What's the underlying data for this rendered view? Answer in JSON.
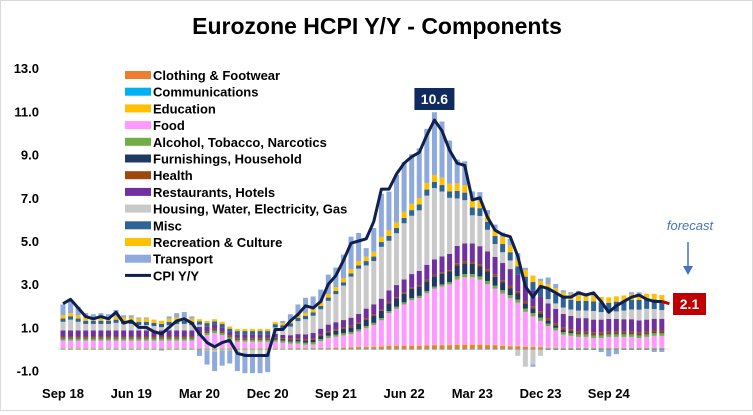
{
  "chart_data": {
    "type": "bar",
    "stacked": true,
    "title": "Eurozone HCPI Y/Y - Components",
    "xlabel": "",
    "ylabel": "",
    "ylim": [
      -1.0,
      13.0
    ],
    "yticks": [
      "-1.0",
      "1.0",
      "3.0",
      "5.0",
      "7.0",
      "9.0",
      "11.0",
      "13.0"
    ],
    "ytick_values": [
      -1,
      1,
      3,
      5,
      7,
      9,
      11,
      13
    ],
    "xtick_labels": [
      "Sep 18",
      "Jun 19",
      "Mar 20",
      "Dec 20",
      "Sep 21",
      "Jun 22",
      "Mar 23",
      "Dec 23",
      "Sep 24"
    ],
    "xtick_every_months": 9,
    "grid": false,
    "legend_placement": "top-left",
    "series": [
      {
        "name": "Clothing & Footwear",
        "color": "#ED7D31",
        "values": [
          0.03,
          0.03,
          0.03,
          0.03,
          0.03,
          0.03,
          0.03,
          0.03,
          0.03,
          0.03,
          0.03,
          0.03,
          0.03,
          0.03,
          0.03,
          0.03,
          0.03,
          0.03,
          0.03,
          0.03,
          0.03,
          0.03,
          0.03,
          0.03,
          0.03,
          0.03,
          0.03,
          0.03,
          0.03,
          0.03,
          0.04,
          0.04,
          0.04,
          0.05,
          0.05,
          0.05,
          0.06,
          0.07,
          0.08,
          0.1,
          0.1,
          0.1,
          0.12,
          0.15,
          0.15,
          0.15,
          0.15,
          0.15,
          0.17,
          0.18,
          0.18,
          0.18,
          0.2,
          0.2,
          0.2,
          0.19,
          0.18,
          0.17,
          0.15,
          0.13,
          0.12,
          0.1,
          0.09,
          0.08,
          0.05,
          0.05,
          0.05,
          0.05,
          0.05,
          0.05,
          0.05,
          0.05,
          0.05,
          0.05,
          0.05,
          0.05,
          0.05,
          0.05,
          0.05,
          0.05
        ]
      },
      {
        "name": "Communications",
        "color": "#00B0F0",
        "values": [
          -0.02,
          -0.02,
          -0.02,
          -0.02,
          -0.02,
          -0.02,
          -0.02,
          -0.02,
          -0.02,
          -0.02,
          -0.02,
          -0.02,
          -0.02,
          -0.02,
          -0.02,
          -0.02,
          -0.02,
          -0.02,
          -0.02,
          -0.02,
          -0.02,
          -0.02,
          -0.02,
          -0.02,
          -0.02,
          -0.02,
          -0.02,
          -0.02,
          -0.02,
          -0.02,
          -0.02,
          -0.02,
          -0.02,
          -0.02,
          -0.02,
          -0.02,
          -0.02,
          -0.02,
          -0.02,
          -0.02,
          -0.02,
          -0.02,
          -0.02,
          -0.02,
          -0.02,
          -0.02,
          -0.02,
          -0.02,
          -0.02,
          -0.02,
          -0.02,
          -0.02,
          -0.02,
          -0.02,
          -0.02,
          -0.02,
          -0.02,
          -0.02,
          -0.02,
          -0.02,
          -0.02,
          -0.02,
          -0.02,
          -0.02,
          -0.04,
          -0.04,
          -0.04,
          -0.04,
          -0.04,
          -0.04,
          -0.04,
          -0.04,
          -0.04,
          -0.04,
          -0.04,
          -0.04,
          -0.04,
          -0.04,
          -0.04,
          -0.04
        ]
      },
      {
        "name": "Education",
        "color": "#FFC000",
        "values": [
          0.01,
          0.01,
          0.01,
          0.01,
          0.01,
          0.01,
          0.01,
          0.01,
          0.01,
          0.01,
          0.01,
          0.01,
          0.01,
          0.01,
          0.01,
          0.01,
          0.01,
          0.01,
          0.01,
          0.01,
          0.01,
          0.01,
          0.01,
          0.01,
          0.01,
          0.01,
          0.01,
          0.01,
          0.01,
          0.01,
          0.01,
          0.01,
          0.01,
          0.01,
          0.01,
          0.01,
          0.01,
          0.01,
          0.01,
          0.01,
          0.01,
          0.01,
          0.01,
          0.01,
          0.01,
          0.01,
          0.01,
          0.01,
          0.01,
          0.01,
          0.01,
          0.01,
          0.02,
          0.02,
          0.02,
          0.02,
          0.02,
          0.02,
          0.02,
          0.02,
          0.02,
          0.02,
          0.02,
          0.02,
          0.01,
          0.01,
          0.01,
          0.01,
          0.01,
          0.01,
          0.01,
          0.01,
          0.01,
          0.01,
          0.01,
          0.01,
          0.01,
          0.01,
          0.01,
          0.01
        ]
      },
      {
        "name": "Food",
        "color": "#FF99FF",
        "values": [
          0.35,
          0.35,
          0.35,
          0.35,
          0.35,
          0.35,
          0.35,
          0.35,
          0.35,
          0.35,
          0.35,
          0.35,
          0.35,
          0.35,
          0.35,
          0.35,
          0.35,
          0.35,
          0.55,
          0.6,
          0.7,
          0.6,
          0.4,
          0.3,
          0.3,
          0.3,
          0.3,
          0.3,
          0.3,
          0.25,
          0.2,
          0.2,
          0.15,
          0.15,
          0.3,
          0.45,
          0.5,
          0.55,
          0.6,
          0.7,
          0.85,
          1.0,
          1.2,
          1.5,
          1.7,
          1.9,
          2.1,
          2.2,
          2.4,
          2.6,
          2.7,
          2.8,
          3.0,
          3.1,
          3.1,
          3.0,
          2.8,
          2.6,
          2.4,
          2.2,
          2.0,
          1.6,
          1.4,
          1.2,
          1.0,
          0.8,
          0.6,
          0.55,
          0.5,
          0.5,
          0.45,
          0.45,
          0.5,
          0.5,
          0.5,
          0.5,
          0.45,
          0.5,
          0.55,
          0.55
        ]
      },
      {
        "name": "Alcohol, Tobacco, Narcotics",
        "color": "#70AD47",
        "values": [
          0.1,
          0.1,
          0.1,
          0.1,
          0.1,
          0.1,
          0.1,
          0.1,
          0.1,
          0.1,
          0.1,
          0.1,
          0.1,
          0.1,
          0.1,
          0.1,
          0.1,
          0.1,
          0.1,
          0.1,
          0.1,
          0.1,
          0.1,
          0.1,
          0.1,
          0.1,
          0.1,
          0.1,
          0.1,
          0.1,
          0.1,
          0.1,
          0.1,
          0.1,
          0.1,
          0.1,
          0.1,
          0.1,
          0.1,
          0.1,
          0.1,
          0.1,
          0.1,
          0.1,
          0.1,
          0.1,
          0.1,
          0.1,
          0.1,
          0.1,
          0.1,
          0.1,
          0.15,
          0.15,
          0.15,
          0.15,
          0.15,
          0.15,
          0.15,
          0.15,
          0.15,
          0.15,
          0.15,
          0.15,
          0.12,
          0.12,
          0.12,
          0.12,
          0.12,
          0.12,
          0.12,
          0.12,
          0.12,
          0.12,
          0.12,
          0.12,
          0.12,
          0.12,
          0.12,
          0.12
        ]
      },
      {
        "name": "Furnishings, Household",
        "color": "#203864",
        "values": [
          0.03,
          0.03,
          0.03,
          0.03,
          0.03,
          0.03,
          0.03,
          0.03,
          0.03,
          0.03,
          0.03,
          0.03,
          0.03,
          0.03,
          0.03,
          0.03,
          0.03,
          0.03,
          0.03,
          0.03,
          0.03,
          0.03,
          0.03,
          0.03,
          0.03,
          0.03,
          0.03,
          0.03,
          0.05,
          0.05,
          0.06,
          0.08,
          0.1,
          0.12,
          0.14,
          0.16,
          0.18,
          0.2,
          0.22,
          0.25,
          0.3,
          0.32,
          0.34,
          0.36,
          0.38,
          0.4,
          0.42,
          0.44,
          0.46,
          0.48,
          0.5,
          0.5,
          0.5,
          0.5,
          0.48,
          0.46,
          0.44,
          0.4,
          0.36,
          0.32,
          0.28,
          0.25,
          0.22,
          0.2,
          0.15,
          0.12,
          0.1,
          0.08,
          0.05,
          0.05,
          0.05,
          0.05,
          0.05,
          0.05,
          0.05,
          0.05,
          0.05,
          0.05,
          0.05,
          0.05
        ]
      },
      {
        "name": "Health",
        "color": "#9E480E",
        "values": [
          0.06,
          0.06,
          0.06,
          0.06,
          0.06,
          0.06,
          0.06,
          0.06,
          0.06,
          0.06,
          0.06,
          0.06,
          0.06,
          0.06,
          0.06,
          0.06,
          0.06,
          0.06,
          0.06,
          0.06,
          0.06,
          0.06,
          0.06,
          0.06,
          0.06,
          0.06,
          0.06,
          0.06,
          0.06,
          0.06,
          0.06,
          0.06,
          0.06,
          0.06,
          0.06,
          0.06,
          0.06,
          0.06,
          0.06,
          0.06,
          0.06,
          0.06,
          0.06,
          0.06,
          0.06,
          0.06,
          0.06,
          0.06,
          0.06,
          0.06,
          0.06,
          0.06,
          0.1,
          0.1,
          0.1,
          0.1,
          0.1,
          0.1,
          0.1,
          0.1,
          0.1,
          0.1,
          0.1,
          0.1,
          0.1,
          0.1,
          0.1,
          0.1,
          0.1,
          0.1,
          0.1,
          0.1,
          0.1,
          0.1,
          0.1,
          0.1,
          0.1,
          0.1,
          0.1,
          0.1
        ]
      },
      {
        "name": "Restaurants, Hotels",
        "color": "#7030A0",
        "values": [
          0.28,
          0.28,
          0.28,
          0.28,
          0.28,
          0.28,
          0.28,
          0.28,
          0.28,
          0.28,
          0.28,
          0.28,
          0.28,
          0.28,
          0.28,
          0.28,
          0.28,
          0.28,
          0.25,
          0.22,
          0.2,
          0.18,
          0.16,
          0.15,
          0.15,
          0.15,
          0.15,
          0.15,
          0.15,
          0.15,
          0.17,
          0.2,
          0.22,
          0.25,
          0.28,
          0.3,
          0.33,
          0.35,
          0.38,
          0.4,
          0.45,
          0.48,
          0.5,
          0.53,
          0.56,
          0.6,
          0.63,
          0.66,
          0.7,
          0.72,
          0.74,
          0.75,
          0.8,
          0.82,
          0.84,
          0.84,
          0.83,
          0.82,
          0.8,
          0.78,
          0.76,
          0.74,
          0.72,
          0.7,
          0.68,
          0.66,
          0.64,
          0.62,
          0.6,
          0.6,
          0.58,
          0.58,
          0.56,
          0.56,
          0.55,
          0.55,
          0.54,
          0.53,
          0.52,
          0.52
        ]
      },
      {
        "name": "Housing, Water, Electricity, Gas",
        "color": "#C9C9C9",
        "values": [
          0.4,
          0.5,
          0.4,
          0.3,
          0.3,
          0.3,
          0.3,
          0.35,
          0.3,
          0.3,
          0.25,
          0.25,
          0.2,
          0.15,
          0.25,
          0.3,
          0.3,
          0.25,
          0.1,
          -0.05,
          -0.1,
          -0.05,
          -0.05,
          -0.1,
          -0.15,
          -0.2,
          -0.2,
          -0.15,
          0.3,
          0.3,
          0.4,
          0.6,
          0.7,
          0.8,
          0.9,
          1.1,
          1.3,
          1.6,
          1.9,
          2.1,
          2.0,
          2.0,
          2.4,
          2.3,
          2.4,
          2.6,
          2.7,
          2.8,
          3.2,
          3.3,
          3.0,
          2.6,
          2.2,
          2.0,
          1.3,
          1.4,
          1.0,
          0.6,
          0.5,
          0.4,
          -0.3,
          -0.8,
          -0.7,
          -0.3,
          0.2,
          0.25,
          0.3,
          0.3,
          0.35,
          0.35,
          0.4,
          0.35,
          0.3,
          0.35,
          0.4,
          0.45,
          0.5,
          0.5,
          0.45,
          0.4
        ]
      },
      {
        "name": "Misc",
        "color": "#2E6396",
        "values": [
          0.15,
          0.15,
          0.15,
          0.15,
          0.15,
          0.15,
          0.15,
          0.15,
          0.15,
          0.15,
          0.15,
          0.15,
          0.15,
          0.15,
          0.15,
          0.15,
          0.15,
          0.15,
          0.15,
          0.15,
          0.15,
          0.15,
          0.15,
          0.15,
          0.15,
          0.15,
          0.15,
          0.15,
          0.15,
          0.15,
          0.15,
          0.15,
          0.15,
          0.15,
          0.15,
          0.15,
          0.15,
          0.15,
          0.15,
          0.15,
          0.2,
          0.21,
          0.22,
          0.23,
          0.24,
          0.25,
          0.26,
          0.27,
          0.28,
          0.29,
          0.3,
          0.3,
          0.35,
          0.35,
          0.36,
          0.36,
          0.37,
          0.37,
          0.38,
          0.38,
          0.39,
          0.39,
          0.4,
          0.4,
          0.45,
          0.45,
          0.45,
          0.45,
          0.45,
          0.45,
          0.45,
          0.45,
          0.45,
          0.45,
          0.45,
          0.45,
          0.45,
          0.45,
          0.45,
          0.45
        ]
      },
      {
        "name": "Recreation & Culture",
        "color": "#FFC000",
        "values": [
          0.15,
          0.15,
          0.15,
          0.15,
          0.15,
          0.15,
          0.15,
          0.15,
          0.15,
          0.15,
          0.15,
          0.15,
          0.15,
          0.15,
          0.15,
          0.15,
          0.15,
          0.15,
          0.1,
          0.1,
          0.1,
          0.1,
          0.1,
          0.1,
          0.1,
          0.1,
          0.1,
          0.1,
          0.1,
          0.1,
          0.12,
          0.12,
          0.14,
          0.14,
          0.16,
          0.16,
          0.18,
          0.18,
          0.2,
          0.2,
          0.2,
          0.22,
          0.24,
          0.25,
          0.26,
          0.28,
          0.29,
          0.3,
          0.31,
          0.32,
          0.34,
          0.35,
          0.35,
          0.35,
          0.35,
          0.34,
          0.34,
          0.33,
          0.33,
          0.32,
          0.32,
          0.31,
          0.3,
          0.3,
          0.25,
          0.25,
          0.25,
          0.25,
          0.25,
          0.25,
          0.25,
          0.25,
          0.25,
          0.25,
          0.25,
          0.25,
          0.25,
          0.25,
          0.25,
          0.25
        ]
      },
      {
        "name": "Transport",
        "color": "#8EA9DB",
        "values": [
          0.5,
          0.6,
          0.4,
          0.2,
          0.15,
          0.2,
          0.15,
          0.3,
          0.1,
          0.1,
          0.05,
          0.05,
          0.0,
          -0.05,
          0.1,
          0.2,
          0.25,
          0.1,
          -0.3,
          -0.65,
          -0.9,
          -0.7,
          -0.6,
          -0.9,
          -0.95,
          -0.9,
          -0.9,
          -0.9,
          0.0,
          0.1,
          0.3,
          0.5,
          0.7,
          0.6,
          0.6,
          0.9,
          0.9,
          1.1,
          1.5,
          1.3,
          0.4,
          1.1,
          2.0,
          1.8,
          2.2,
          2.3,
          2.3,
          2.3,
          2.5,
          2.9,
          2.6,
          2.0,
          1.1,
          1.1,
          0.4,
          0.4,
          0.2,
          0.2,
          0.2,
          0.3,
          0.3,
          0.1,
          -0.1,
          0.1,
          0.3,
          0.2,
          0.1,
          0.1,
          0.2,
          0.1,
          0.1,
          -0.1,
          -0.3,
          -0.2,
          0.0,
          0.1,
          0.1,
          0.0,
          -0.1,
          -0.1
        ]
      }
    ],
    "line": {
      "name": "CPI Y/Y",
      "color": "#0F1F4F",
      "values": [
        2.1,
        2.3,
        1.9,
        1.5,
        1.4,
        1.5,
        1.4,
        1.7,
        1.2,
        1.3,
        1.0,
        1.0,
        0.8,
        0.7,
        1.0,
        1.3,
        1.4,
        1.2,
        0.7,
        0.3,
        0.1,
        0.3,
        0.4,
        -0.2,
        -0.3,
        -0.3,
        -0.3,
        -0.3,
        0.9,
        0.9,
        1.3,
        1.6,
        2.0,
        1.9,
        2.2,
        3.0,
        3.4,
        4.1,
        4.9,
        5.0,
        5.1,
        5.9,
        7.4,
        7.4,
        8.1,
        8.6,
        8.9,
        9.1,
        9.9,
        10.6,
        10.1,
        9.2,
        8.6,
        8.5,
        6.9,
        7.0,
        6.1,
        5.5,
        5.3,
        5.2,
        4.3,
        2.9,
        2.4,
        2.9,
        2.8,
        2.6,
        2.4,
        2.4,
        2.6,
        2.5,
        2.6,
        2.2,
        1.7,
        2.0,
        2.2,
        2.4,
        2.5,
        2.3,
        2.2,
        2.2
      ]
    },
    "annotations": {
      "peak_label": "10.6",
      "peak_color": "#0F2A5E",
      "forecast_text": "forecast",
      "forecast_value": 2.1,
      "forecast_label": "2.1",
      "forecast_color": "#C00000",
      "forecast_text_color": "#4472C4"
    }
  }
}
